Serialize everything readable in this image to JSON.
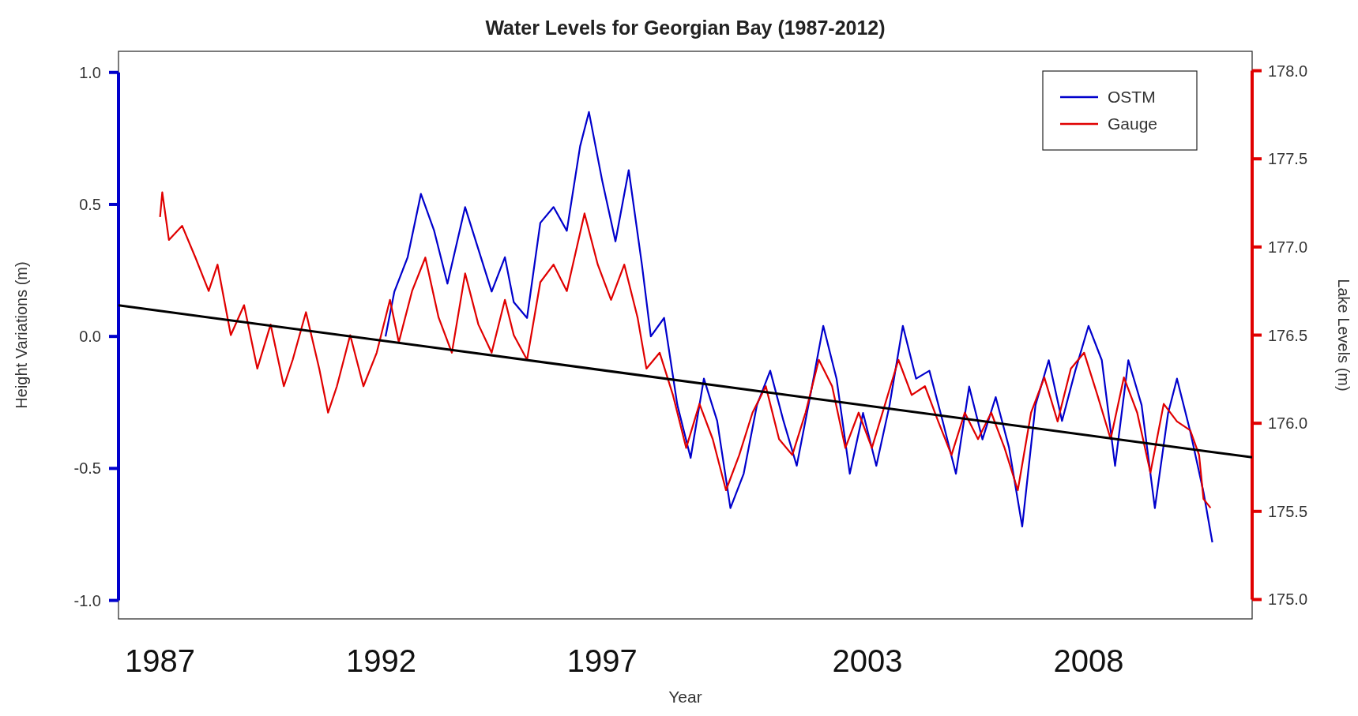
{
  "chart_data": {
    "type": "line",
    "title": "Water Levels for Georgian Bay (1987-2012)",
    "xlabel": "Year",
    "ylabel": "Height Variations (m)",
    "y2label": "Lake Levels (m)",
    "xlim": [
      1986.06,
      2011.7
    ],
    "xticks": [
      1987,
      1992,
      1997,
      2003,
      2008
    ],
    "ylim": [
      -1.07,
      1.08
    ],
    "yticks": [
      {
        "value": -1,
        "label": "-1.0"
      },
      {
        "value": -0.5,
        "label": "-0.5"
      },
      {
        "value": 0,
        "label": "0.0"
      },
      {
        "value": 0.5,
        "label": "0.5"
      },
      {
        "value": 1,
        "label": "1.0"
      }
    ],
    "y2lim": [
      174.89,
      178.11
    ],
    "y2ticks": [
      {
        "value": 175,
        "label": "175.0"
      },
      {
        "value": 175.5,
        "label": "175.5"
      },
      {
        "value": 176,
        "label": "176.0"
      },
      {
        "value": 176.5,
        "label": "176.5"
      },
      {
        "value": 177,
        "label": "177.0"
      },
      {
        "value": 177.5,
        "label": "177.5"
      },
      {
        "value": 178,
        "label": "178.0"
      }
    ],
    "grid": false,
    "legend": "top right",
    "series": [
      {
        "name": "OSTM",
        "color": "#0000cc",
        "x": [
          1992.1,
          1992.3,
          1992.6,
          1992.9,
          1993.2,
          1993.5,
          1993.9,
          1994.2,
          1994.5,
          1994.8,
          1995.0,
          1995.3,
          1995.6,
          1995.9,
          1996.2,
          1996.5,
          1996.7,
          1997.0,
          1997.3,
          1997.6,
          1997.9,
          1998.1,
          1998.4,
          1998.7,
          1999.0,
          1999.3,
          1999.6,
          1999.9,
          2000.2,
          2000.5,
          2000.8,
          2001.1,
          2001.4,
          2001.7,
          2002.0,
          2002.3,
          2002.6,
          2002.9,
          2003.2,
          2003.5,
          2003.8,
          2004.1,
          2004.4,
          2004.7,
          2005.0,
          2005.3,
          2005.6,
          2005.9,
          2006.2,
          2006.5,
          2006.8,
          2007.1,
          2007.4,
          2007.7,
          2008.0,
          2008.3,
          2008.6,
          2008.9,
          2009.2,
          2009.5,
          2009.8,
          2010.0,
          2010.3,
          2010.6,
          2010.8
        ],
        "values": [
          0.0,
          0.17,
          0.3,
          0.54,
          0.4,
          0.2,
          0.49,
          0.33,
          0.17,
          0.3,
          0.13,
          0.07,
          0.43,
          0.49,
          0.4,
          0.72,
          0.85,
          0.59,
          0.36,
          0.63,
          0.27,
          0.0,
          0.07,
          -0.26,
          -0.46,
          -0.16,
          -0.32,
          -0.65,
          -0.52,
          -0.26,
          -0.13,
          -0.32,
          -0.49,
          -0.23,
          0.04,
          -0.16,
          -0.52,
          -0.29,
          -0.49,
          -0.26,
          0.04,
          -0.16,
          -0.13,
          -0.32,
          -0.52,
          -0.19,
          -0.39,
          -0.23,
          -0.42,
          -0.72,
          -0.26,
          -0.09,
          -0.32,
          -0.13,
          0.04,
          -0.09,
          -0.49,
          -0.09,
          -0.26,
          -0.65,
          -0.29,
          -0.16,
          -0.36,
          -0.59,
          -0.78
        ]
      },
      {
        "name": "Gauge",
        "color": "#e00000",
        "axis": "y2",
        "x": [
          1987.0,
          1987.05,
          1987.2,
          1987.5,
          1987.8,
          1988.1,
          1988.3,
          1988.6,
          1988.9,
          1989.2,
          1989.5,
          1989.8,
          1990.0,
          1990.3,
          1990.6,
          1990.8,
          1991.0,
          1991.3,
          1991.6,
          1991.9,
          1992.2,
          1992.4,
          1992.7,
          1993.0,
          1993.3,
          1993.6,
          1993.9,
          1994.2,
          1994.5,
          1994.8,
          1995.0,
          1995.3,
          1995.6,
          1995.9,
          1996.2,
          1996.6,
          1996.9,
          1997.2,
          1997.5,
          1997.8,
          1998.0,
          1998.3,
          1998.6,
          1998.9,
          1999.2,
          1999.5,
          1999.8,
          2000.1,
          2000.4,
          2000.7,
          2001.0,
          2001.3,
          2001.6,
          2001.9,
          2002.2,
          2002.5,
          2002.8,
          2003.1,
          2003.4,
          2003.7,
          2004.0,
          2004.3,
          2004.6,
          2004.9,
          2005.2,
          2005.5,
          2005.8,
          2006.1,
          2006.4,
          2006.7,
          2007.0,
          2007.3,
          2007.6,
          2007.9,
          2008.2,
          2008.5,
          2008.8,
          2009.1,
          2009.4,
          2009.7,
          2010.0,
          2010.3,
          2010.5,
          2010.6,
          2010.76
        ],
        "values": [
          177.17,
          177.31,
          177.04,
          177.12,
          176.94,
          176.75,
          176.9,
          176.5,
          176.67,
          176.31,
          176.56,
          176.21,
          176.36,
          176.63,
          176.31,
          176.06,
          176.21,
          176.5,
          176.21,
          176.4,
          176.7,
          176.46,
          176.75,
          176.94,
          176.6,
          176.4,
          176.85,
          176.56,
          176.4,
          176.7,
          176.5,
          176.36,
          176.8,
          176.9,
          176.75,
          177.19,
          176.9,
          176.7,
          176.9,
          176.6,
          176.31,
          176.4,
          176.16,
          175.86,
          176.11,
          175.91,
          175.62,
          175.82,
          176.06,
          176.21,
          175.91,
          175.82,
          176.06,
          176.36,
          176.21,
          175.86,
          176.06,
          175.86,
          176.11,
          176.36,
          176.16,
          176.21,
          176.01,
          175.82,
          176.06,
          175.91,
          176.06,
          175.86,
          175.62,
          176.06,
          176.26,
          176.01,
          176.31,
          176.4,
          176.16,
          175.91,
          176.26,
          176.06,
          175.72,
          176.11,
          176.01,
          175.96,
          175.82,
          175.57,
          175.52
        ]
      },
      {
        "type": "line",
        "color": "#000000",
        "x": [
          1986.06,
          2011.7
        ],
        "values": [
          0.118,
          -0.458
        ]
      }
    ]
  }
}
